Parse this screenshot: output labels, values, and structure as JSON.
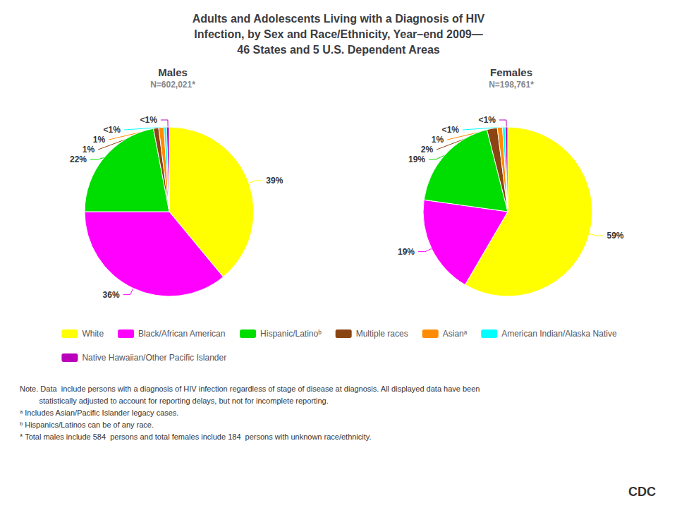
{
  "title": "Adults and Adolescents Living with a Diagnosis of HIV\nInfection, by Sex and Race/Ethnicity, Year–end 2009—\n46 States and 5 U.S. Dependent Areas",
  "annotations": [
    "Note. Data  include persons with a diagnosis of HIV infection regardless of stage of disease at diagnosis. All displayed data have been",
    "         statistically adjusted to account for reporting delays, but not for incomplete reporting.",
    "ᵃ Includes Asian/Pacific Islander legacy cases.",
    "ᵇ Hispanics/Latinos can be of any race.",
    "* Total males include 584  persons and total females include 184  persons with unknown race/ethnicity.",
    "CDC"
  ],
  "chart_data": [
    {
      "type": "pie",
      "title": "Males",
      "subtitle": "N=602,021*",
      "categories": [
        "White",
        "Black/African American",
        "Hispanic/Latinoᵇ",
        "Multiple races",
        "Asianᵃ",
        "American Indian/Alaska Native",
        "Native Hawaiian/Other Pacific Islander"
      ],
      "values": [
        39,
        36,
        22,
        1,
        1,
        0.5,
        0.5
      ],
      "value_labels": [
        "39%",
        "36%",
        "22%",
        "1%",
        "1%",
        "<1%",
        "<1%"
      ],
      "colors": [
        "#FFFF00",
        "#FF00FF",
        "#00DD00",
        "#8B4513",
        "#FF8C00",
        "#00FFFF",
        "#BB00BB"
      ],
      "data_labels": true,
      "legend": "bottom"
    },
    {
      "type": "pie",
      "title": "Females",
      "subtitle": "N=198,761*",
      "categories": [
        "White",
        "Black/African American",
        "Hispanic/Latinoᵇ",
        "Multiple races",
        "Asianᵃ",
        "American Indian/Alaska Native",
        "Native Hawaiian/Other Pacific Islander"
      ],
      "values": [
        59,
        19,
        19,
        2,
        1,
        0.5,
        0.5
      ],
      "value_labels": [
        "59%",
        "19%",
        "19%",
        "2%",
        "1%",
        "<1%",
        "<1%"
      ],
      "colors": [
        "#FFFF00",
        "#FF00FF",
        "#00DD00",
        "#8B4513",
        "#FF8C00",
        "#00FFFF",
        "#BB00BB"
      ],
      "data_labels": true,
      "legend": "bottom"
    }
  ]
}
